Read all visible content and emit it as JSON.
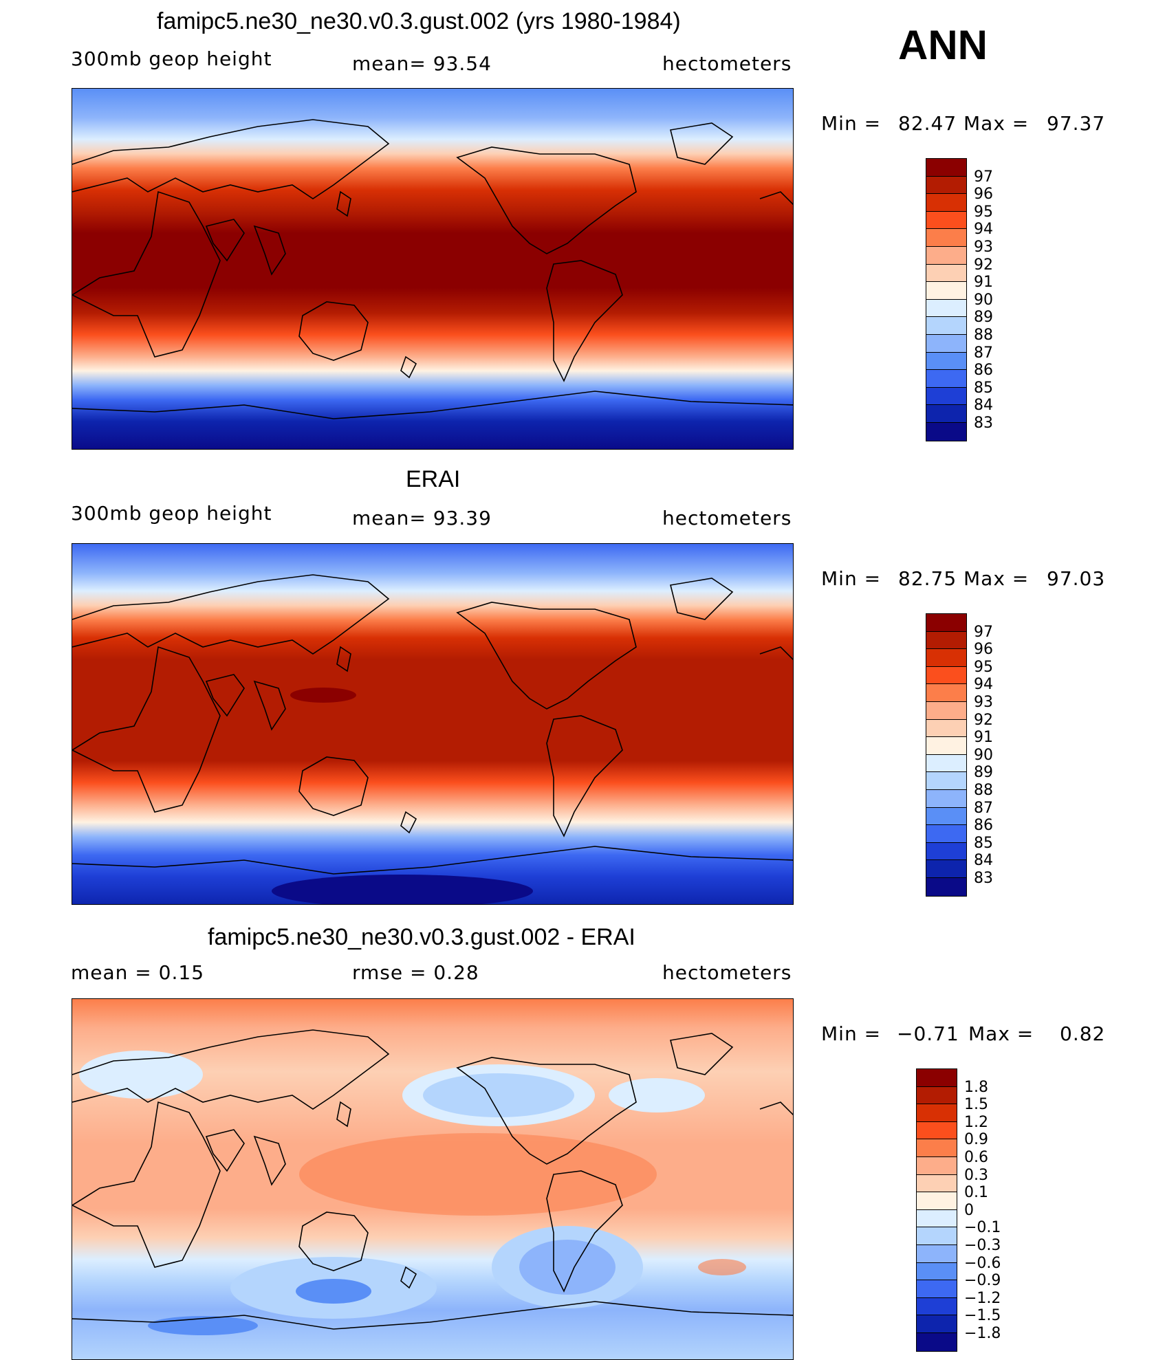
{
  "header": {
    "season": "ANN"
  },
  "panels": [
    {
      "title": "famipc5.ne30_ne30.v0.3.gust.002 (yrs 1980-1984)",
      "left_label": "300mb  geop  height",
      "center_label": "mean=   93.54",
      "right_label": "hectometers",
      "min_text": "Min  =",
      "min_value": "82.47",
      "max_text": "Max  =",
      "max_value": "97.37",
      "colorbar_labels": [
        "97",
        "96",
        "95",
        "94",
        "93",
        "92",
        "91",
        "90",
        "89",
        "88",
        "87",
        "86",
        "85",
        "84",
        "83"
      ],
      "colorbar_colors": [
        "#8b0000",
        "#b31c02",
        "#d83004",
        "#fb4f1d",
        "#fc7e4a",
        "#fdad8a",
        "#fdd0b4",
        "#fff2e2",
        "#dceeff",
        "#b4d5fd",
        "#8db4fb",
        "#5a8ff6",
        "#3d69f2",
        "#1e3fd6",
        "#0d24ad",
        "#0a0a88"
      ],
      "map_colors": {
        "top": "#3d69f2",
        "mid": "#8b0000",
        "bottom": "#0a0a88"
      }
    },
    {
      "title": "ERAI",
      "left_label": "300mb  geop  height",
      "center_label": "mean=   93.39",
      "right_label": "hectometers",
      "min_text": "Min  =",
      "min_value": "82.75",
      "max_text": "Max  =",
      "max_value": "97.03",
      "colorbar_labels": [
        "97",
        "96",
        "95",
        "94",
        "93",
        "92",
        "91",
        "90",
        "89",
        "88",
        "87",
        "86",
        "85",
        "84",
        "83"
      ],
      "colorbar_colors": [
        "#8b0000",
        "#b31c02",
        "#d83004",
        "#fb4f1d",
        "#fc7e4a",
        "#fdad8a",
        "#fdd0b4",
        "#fff2e2",
        "#dceeff",
        "#b4d5fd",
        "#8db4fb",
        "#5a8ff6",
        "#3d69f2",
        "#1e3fd6",
        "#0d24ad",
        "#0a0a88"
      ],
      "map_colors": {
        "top": "#3d69f2",
        "mid": "#b31c02",
        "bottom": "#0a0a88"
      }
    },
    {
      "title": "famipc5.ne30_ne30.v0.3.gust.002 - ERAI",
      "left_label": "mean =     0.15",
      "center_label": "rmse =     0.28",
      "right_label": "hectometers",
      "min_text": "Min  =",
      "min_value": "−0.71",
      "max_text": "Max  =",
      "max_value": "0.82",
      "colorbar_labels": [
        "1.8",
        "1.5",
        "1.2",
        "0.9",
        "0.6",
        "0.3",
        "0.1",
        "0",
        "−0.1",
        "−0.3",
        "−0.6",
        "−0.9",
        "−1.2",
        "−1.5",
        "−1.8"
      ],
      "colorbar_colors": [
        "#8b0000",
        "#b31c02",
        "#d83004",
        "#fb4f1d",
        "#fc7e4a",
        "#fdad8a",
        "#fdd0b4",
        "#fff2e2",
        "#dceeff",
        "#b4d5fd",
        "#8db4fb",
        "#5a8ff6",
        "#3d69f2",
        "#1e3fd6",
        "#0d24ad",
        "#0a0a88"
      ],
      "map_colors": {
        "top": "#fc7e4a",
        "mid": "#fdad8a",
        "bottom": "#8db4fb"
      }
    }
  ]
}
